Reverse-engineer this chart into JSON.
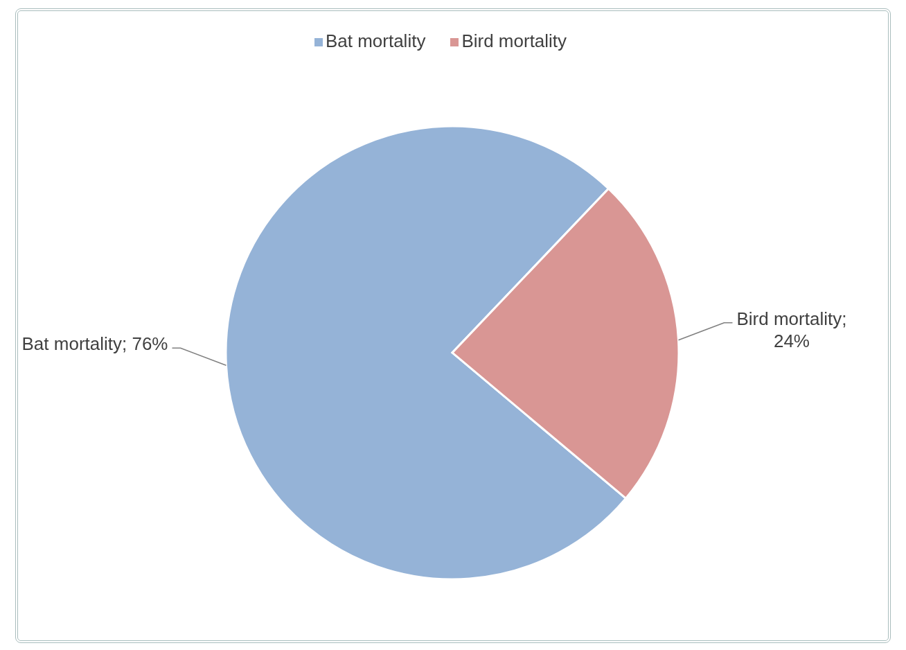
{
  "chart_data": {
    "type": "pie",
    "categories": [
      "Bat mortality",
      "Bird mortality"
    ],
    "values": [
      76,
      24
    ],
    "colors": [
      "#95b3d7",
      "#d99694"
    ],
    "value_labels": [
      "Bat mortality; 76%",
      "Bird mortality; 24%"
    ],
    "legend": "top"
  }
}
